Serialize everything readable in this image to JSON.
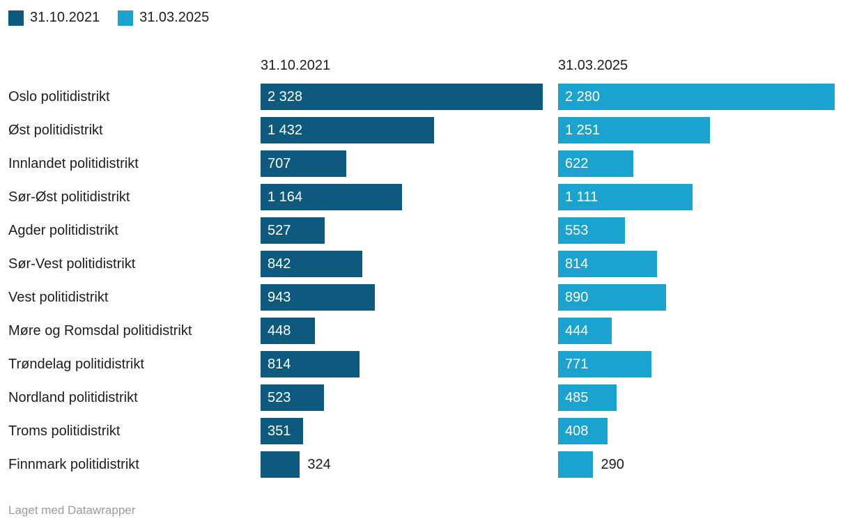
{
  "legend": {
    "items": [
      {
        "label": "31.10.2021",
        "color": "#0e5a7e"
      },
      {
        "label": "31.03.2025",
        "color": "#1ca2cf"
      }
    ]
  },
  "column_headers": [
    "31.10.2021",
    "31.03.2025"
  ],
  "footer": {
    "attribution": "Laget med Datawrapper"
  },
  "chart_data": {
    "type": "bar",
    "orientation": "horizontal",
    "title": "",
    "legend_position": "top",
    "grid": false,
    "value_axis_range": [
      0,
      2328
    ],
    "max_value": 2328,
    "categories": [
      "Oslo politidistrikt",
      "Øst politidistrikt",
      "Innlandet politidistrikt",
      "Sør-Øst politidistrikt",
      "Agder politidistrikt",
      "Sør-Vest politidistrikt",
      "Vest politidistrikt",
      "Møre og Romsdal politidistrikt",
      "Trøndelag politidistrikt",
      "Nordland politidistrikt",
      "Troms politidistrikt",
      "Finnmark politidistrikt"
    ],
    "series": [
      {
        "name": "31.10.2021",
        "color": "#0e5a7e",
        "values": [
          2328,
          1432,
          707,
          1164,
          527,
          842,
          943,
          448,
          814,
          523,
          351,
          324
        ],
        "labels": [
          "2 328",
          "1 432",
          "707",
          "1 164",
          "527",
          "842",
          "943",
          "448",
          "814",
          "523",
          "351",
          "324"
        ]
      },
      {
        "name": "31.03.2025",
        "color": "#1ca2cf",
        "values": [
          2280,
          1251,
          622,
          1111,
          553,
          814,
          890,
          444,
          771,
          485,
          408,
          290
        ],
        "labels": [
          "2 280",
          "1 251",
          "622",
          "1 111",
          "553",
          "814",
          "890",
          "444",
          "771",
          "485",
          "408",
          "290"
        ]
      }
    ]
  }
}
